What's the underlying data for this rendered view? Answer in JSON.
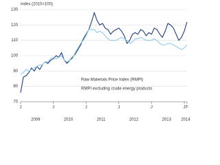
{
  "chart_data": {
    "type": "line",
    "y_label": "index (2010=100)",
    "categories": [
      "J",
      null,
      null,
      null,
      null,
      null,
      null,
      null,
      null,
      null,
      null,
      null,
      "J",
      null,
      null,
      null,
      null,
      null,
      null,
      null,
      null,
      null,
      null,
      null,
      "J",
      null,
      null,
      null,
      null,
      null,
      null,
      null,
      null,
      null,
      null,
      null,
      "J",
      null,
      null,
      null,
      null,
      null,
      null,
      null,
      null,
      null,
      null,
      null,
      "J",
      null,
      null,
      null,
      null,
      null,
      null,
      null,
      null,
      null,
      null,
      null,
      "J",
      "F"
    ],
    "year_labels": [
      "2009",
      "2010",
      "2011",
      "2012",
      "2013",
      "2014"
    ],
    "ylim": [
      70,
      130
    ],
    "yticks": [
      70,
      80,
      90,
      100,
      110,
      120,
      130
    ],
    "grid": true,
    "series": [
      {
        "name": "Raw Materials Price Index (RMPI)",
        "color": "#1f3a7a",
        "values": [
          76,
          86,
          87,
          89,
          92,
          90,
          93,
          91,
          94,
          96,
          95,
          97,
          98,
          100,
          99,
          102,
          97,
          95,
          97,
          99,
          101,
          104,
          107,
          111,
          114,
          117,
          122,
          128,
          123,
          120,
          121,
          118,
          117,
          114,
          116,
          117,
          118,
          116,
          113,
          108,
          110,
          114,
          115,
          114,
          117,
          116,
          113,
          115,
          114,
          118,
          117,
          114,
          112,
          116,
          121,
          120,
          118,
          114,
          110,
          112,
          116,
          122
        ]
      },
      {
        "name": "RMPI excluding crude energy products",
        "color": "#8ecbea",
        "values": [
          88,
          89,
          91,
          90,
          91,
          92,
          93,
          94,
          94,
          96,
          96,
          98,
          99,
          98,
          99,
          100,
          97,
          96,
          97,
          98,
          102,
          105,
          108,
          110,
          113,
          117,
          117,
          117,
          115,
          116,
          115,
          113,
          111,
          110,
          110,
          110,
          111,
          112,
          111,
          110,
          108,
          109,
          111,
          111,
          112,
          111,
          110,
          110,
          110,
          111,
          110,
          108,
          107,
          107,
          108,
          108,
          107,
          106,
          105,
          104,
          105,
          107
        ]
      }
    ]
  }
}
